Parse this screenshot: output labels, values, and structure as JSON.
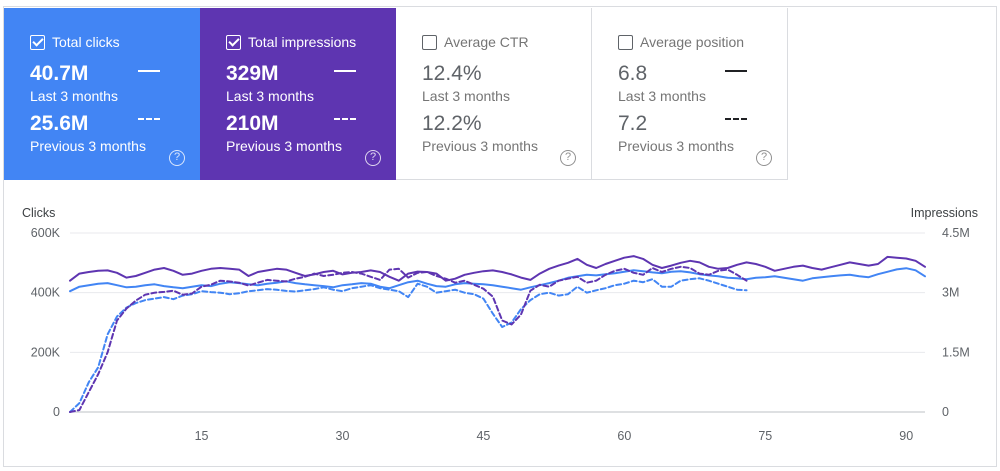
{
  "cards": [
    {
      "label": "Total clicks",
      "checked": true,
      "current_value": "40.7M",
      "current_period": "Last 3 months",
      "previous_value": "25.6M",
      "previous_period": "Previous 3 months",
      "help": "?"
    },
    {
      "label": "Total impressions",
      "checked": true,
      "current_value": "329M",
      "current_period": "Last 3 months",
      "previous_value": "210M",
      "previous_period": "Previous 3 months",
      "help": "?"
    },
    {
      "label": "Average CTR",
      "checked": false,
      "current_value": "12.4%",
      "current_period": "Last 3 months",
      "previous_value": "12.2%",
      "previous_period": "Previous 3 months",
      "help": "?"
    },
    {
      "label": "Average position",
      "checked": false,
      "current_value": "6.8",
      "current_period": "Last 3 months",
      "previous_value": "7.2",
      "previous_period": "Previous 3 months",
      "help": "?"
    }
  ],
  "colors": {
    "clicks": "#4285f4",
    "impressions": "#5e35b1",
    "grid": "#e8eaed",
    "axis_text": "#5f6368"
  },
  "chart_data": {
    "type": "line",
    "y_left_label": "Clicks",
    "y_right_label": "Impressions",
    "y_left_ticks": [
      "0",
      "200K",
      "400K",
      "600K"
    ],
    "y_left_range": [
      0,
      600000
    ],
    "y_right_ticks": [
      "0",
      "1.5M",
      "3M",
      "4.5M"
    ],
    "y_right_range": [
      0,
      4500000
    ],
    "x_ticks": [
      "15",
      "30",
      "45",
      "60",
      "75",
      "90"
    ],
    "x_tick_values": [
      15,
      30,
      45,
      60,
      75,
      90
    ],
    "x_range": [
      1,
      92
    ],
    "grid": true,
    "series": [
      {
        "name": "Total clicks",
        "axis": "left",
        "style": "solid",
        "color": "#4285f4",
        "values": [
          405000,
          420000,
          425000,
          430000,
          432000,
          425000,
          418000,
          420000,
          425000,
          428000,
          422000,
          418000,
          415000,
          420000,
          425000,
          422000,
          430000,
          435000,
          432000,
          428000,
          425000,
          430000,
          433000,
          438000,
          432000,
          428000,
          425000,
          422000,
          418000,
          425000,
          428000,
          432000,
          430000,
          420000,
          415000,
          425000,
          435000,
          440000,
          430000,
          422000,
          420000,
          428000,
          432000,
          430000,
          428000,
          425000,
          420000,
          415000,
          410000,
          418000,
          425000,
          432000,
          440000,
          450000,
          455000,
          460000,
          458000,
          462000,
          465000,
          470000,
          475000,
          472000,
          468000,
          465000,
          470000,
          472000,
          468000,
          462000,
          458000,
          455000,
          450000,
          448000,
          445000,
          450000,
          452000,
          455000,
          450000,
          445000,
          440000,
          448000,
          452000,
          455000,
          458000,
          460000,
          455000,
          452000,
          462000,
          470000,
          478000,
          482000,
          475000,
          455000
        ]
      },
      {
        "name": "Total clicks (previous)",
        "axis": "left",
        "style": "dashed",
        "color": "#4285f4",
        "values": [
          0,
          30000,
          100000,
          150000,
          260000,
          320000,
          350000,
          365000,
          375000,
          380000,
          385000,
          378000,
          390000,
          395000,
          405000,
          402000,
          400000,
          395000,
          398000,
          405000,
          408000,
          412000,
          410000,
          406000,
          404000,
          408000,
          412000,
          418000,
          410000,
          405000,
          415000,
          420000,
          425000,
          415000,
          410000,
          405000,
          385000,
          430000,
          420000,
          400000,
          405000,
          410000,
          400000,
          395000,
          380000,
          330000,
          285000,
          300000,
          345000,
          375000,
          395000,
          400000,
          390000,
          395000,
          420000,
          400000,
          408000,
          415000,
          425000,
          430000,
          440000,
          435000,
          445000,
          420000,
          420000,
          440000,
          445000,
          448000,
          440000,
          430000,
          420000,
          410000,
          408000
        ]
      },
      {
        "name": "Total impressions",
        "axis": "right",
        "style": "solid",
        "color": "#5e35b1",
        "values": [
          3300000,
          3480000,
          3520000,
          3550000,
          3560000,
          3500000,
          3380000,
          3420000,
          3500000,
          3580000,
          3620000,
          3550000,
          3450000,
          3480000,
          3550000,
          3600000,
          3620000,
          3600000,
          3580000,
          3420000,
          3520000,
          3560000,
          3600000,
          3580000,
          3500000,
          3420000,
          3460000,
          3520000,
          3550000,
          3460000,
          3500000,
          3520000,
          3560000,
          3520000,
          3400000,
          3300000,
          3480000,
          3530000,
          3520000,
          3480000,
          3300000,
          3350000,
          3450000,
          3500000,
          3540000,
          3560000,
          3520000,
          3460000,
          3380000,
          3320000,
          3480000,
          3600000,
          3680000,
          3750000,
          3850000,
          3700000,
          3620000,
          3720000,
          3800000,
          3880000,
          3920000,
          3850000,
          3700000,
          3620000,
          3680000,
          3750000,
          3800000,
          3760000,
          3650000,
          3600000,
          3620000,
          3700000,
          3760000,
          3720000,
          3650000,
          3550000,
          3600000,
          3650000,
          3680000,
          3620000,
          3580000,
          3640000,
          3700000,
          3760000,
          3720000,
          3680000,
          3720000,
          3900000,
          3880000,
          3860000,
          3800000,
          3650000
        ]
      },
      {
        "name": "Total impressions (previous)",
        "axis": "right",
        "style": "dashed",
        "color": "#5e35b1",
        "values": [
          0,
          50000,
          500000,
          950000,
          1500000,
          2300000,
          2600000,
          2800000,
          2950000,
          3000000,
          3020000,
          3050000,
          2950000,
          2980000,
          3150000,
          3200000,
          3300000,
          3280000,
          3250000,
          3180000,
          3250000,
          3320000,
          3300000,
          3280000,
          3350000,
          3400000,
          3480000,
          3420000,
          3450000,
          3500000,
          3520000,
          3480000,
          3400000,
          3320000,
          3580000,
          3600000,
          3380000,
          3500000,
          3520000,
          3420000,
          3350000,
          3250000,
          3300000,
          3200000,
          3100000,
          2900000,
          2300000,
          2200000,
          2450000,
          3050000,
          3200000,
          3150000,
          3300000,
          3350000,
          3400000,
          3250000,
          3300000,
          3450000,
          3550000,
          3600000,
          3500000,
          3450000,
          3620000,
          3520000,
          3600000,
          3650000,
          3620000,
          3480000,
          3450000,
          3550000,
          3580000,
          3450000,
          3300000
        ]
      }
    ]
  }
}
